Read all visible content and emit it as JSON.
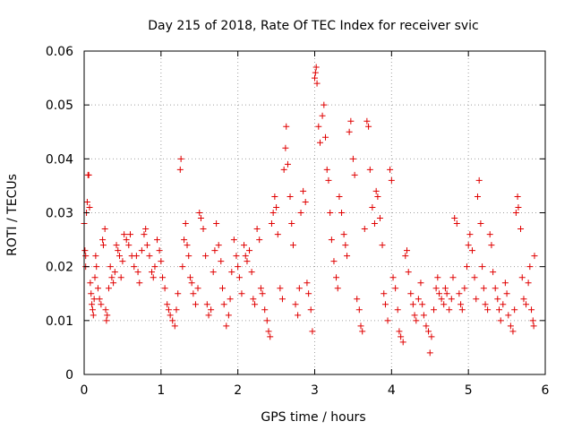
{
  "chart_data": {
    "type": "scatter",
    "title": "Day 215 of 2018, Rate Of TEC Index for receiver svic",
    "xlabel": "GPS time / hours",
    "ylabel": "ROTI / TECUs",
    "xlim": [
      0,
      6
    ],
    "ylim": [
      0,
      0.06
    ],
    "xticks": [
      0,
      1,
      2,
      3,
      4,
      5,
      6
    ],
    "yticks": [
      0,
      0.01,
      0.02,
      0.03,
      0.04,
      0.05,
      0.06
    ],
    "xtick_labels": [
      "0",
      "1",
      "2",
      "3",
      "4",
      "5",
      "6"
    ],
    "ytick_labels": [
      "0",
      "0.01",
      "0.02",
      "0.03",
      "0.04",
      "0.05",
      "0.06"
    ],
    "grid": true,
    "marker": "+",
    "marker_color": "#e00000",
    "series": [
      {
        "name": "ROTI",
        "points": [
          [
            0.0,
            0.028
          ],
          [
            0.01,
            0.023
          ],
          [
            0.02,
            0.022
          ],
          [
            0.02,
            0.02
          ],
          [
            0.03,
            0.03
          ],
          [
            0.04,
            0.032
          ],
          [
            0.05,
            0.037
          ],
          [
            0.06,
            0.037
          ],
          [
            0.07,
            0.031
          ],
          [
            0.08,
            0.017
          ],
          [
            0.09,
            0.015
          ],
          [
            0.1,
            0.013
          ],
          [
            0.11,
            0.012
          ],
          [
            0.12,
            0.011
          ],
          [
            0.13,
            0.014
          ],
          [
            0.14,
            0.018
          ],
          [
            0.15,
            0.022
          ],
          [
            0.16,
            0.02
          ],
          [
            0.18,
            0.016
          ],
          [
            0.2,
            0.014
          ],
          [
            0.22,
            0.013
          ],
          [
            0.24,
            0.025
          ],
          [
            0.25,
            0.024
          ],
          [
            0.27,
            0.027
          ],
          [
            0.28,
            0.012
          ],
          [
            0.29,
            0.01
          ],
          [
            0.3,
            0.011
          ],
          [
            0.32,
            0.016
          ],
          [
            0.34,
            0.02
          ],
          [
            0.36,
            0.018
          ],
          [
            0.38,
            0.017
          ],
          [
            0.4,
            0.019
          ],
          [
            0.42,
            0.024
          ],
          [
            0.44,
            0.023
          ],
          [
            0.46,
            0.022
          ],
          [
            0.48,
            0.018
          ],
          [
            0.5,
            0.021
          ],
          [
            0.52,
            0.026
          ],
          [
            0.55,
            0.025
          ],
          [
            0.58,
            0.024
          ],
          [
            0.6,
            0.026
          ],
          [
            0.62,
            0.022
          ],
          [
            0.65,
            0.02
          ],
          [
            0.68,
            0.022
          ],
          [
            0.7,
            0.019
          ],
          [
            0.72,
            0.017
          ],
          [
            0.75,
            0.023
          ],
          [
            0.78,
            0.026
          ],
          [
            0.8,
            0.027
          ],
          [
            0.82,
            0.024
          ],
          [
            0.85,
            0.022
          ],
          [
            0.88,
            0.019
          ],
          [
            0.9,
            0.018
          ],
          [
            0.92,
            0.02
          ],
          [
            0.95,
            0.025
          ],
          [
            0.98,
            0.023
          ],
          [
            1.0,
            0.021
          ],
          [
            1.02,
            0.018
          ],
          [
            1.05,
            0.016
          ],
          [
            1.08,
            0.013
          ],
          [
            1.1,
            0.012
          ],
          [
            1.12,
            0.011
          ],
          [
            1.15,
            0.01
          ],
          [
            1.18,
            0.009
          ],
          [
            1.2,
            0.012
          ],
          [
            1.22,
            0.015
          ],
          [
            1.25,
            0.038
          ],
          [
            1.26,
            0.04
          ],
          [
            1.28,
            0.02
          ],
          [
            1.3,
            0.025
          ],
          [
            1.32,
            0.028
          ],
          [
            1.34,
            0.024
          ],
          [
            1.36,
            0.022
          ],
          [
            1.38,
            0.018
          ],
          [
            1.4,
            0.017
          ],
          [
            1.42,
            0.015
          ],
          [
            1.45,
            0.013
          ],
          [
            1.48,
            0.016
          ],
          [
            1.5,
            0.03
          ],
          [
            1.52,
            0.029
          ],
          [
            1.55,
            0.027
          ],
          [
            1.58,
            0.022
          ],
          [
            1.6,
            0.013
          ],
          [
            1.62,
            0.011
          ],
          [
            1.65,
            0.012
          ],
          [
            1.68,
            0.019
          ],
          [
            1.7,
            0.023
          ],
          [
            1.72,
            0.028
          ],
          [
            1.75,
            0.024
          ],
          [
            1.78,
            0.021
          ],
          [
            1.8,
            0.016
          ],
          [
            1.82,
            0.013
          ],
          [
            1.85,
            0.009
          ],
          [
            1.88,
            0.011
          ],
          [
            1.9,
            0.014
          ],
          [
            1.92,
            0.019
          ],
          [
            1.95,
            0.025
          ],
          [
            1.98,
            0.022
          ],
          [
            2.0,
            0.02
          ],
          [
            2.02,
            0.018
          ],
          [
            2.05,
            0.015
          ],
          [
            2.08,
            0.024
          ],
          [
            2.1,
            0.022
          ],
          [
            2.12,
            0.021
          ],
          [
            2.15,
            0.023
          ],
          [
            2.18,
            0.019
          ],
          [
            2.2,
            0.014
          ],
          [
            2.22,
            0.013
          ],
          [
            2.25,
            0.027
          ],
          [
            2.28,
            0.025
          ],
          [
            2.3,
            0.016
          ],
          [
            2.32,
            0.015
          ],
          [
            2.35,
            0.012
          ],
          [
            2.38,
            0.01
          ],
          [
            2.4,
            0.008
          ],
          [
            2.42,
            0.007
          ],
          [
            2.44,
            0.028
          ],
          [
            2.46,
            0.03
          ],
          [
            2.48,
            0.033
          ],
          [
            2.5,
            0.031
          ],
          [
            2.52,
            0.026
          ],
          [
            2.55,
            0.016
          ],
          [
            2.58,
            0.014
          ],
          [
            2.6,
            0.038
          ],
          [
            2.62,
            0.042
          ],
          [
            2.63,
            0.046
          ],
          [
            2.65,
            0.039
          ],
          [
            2.68,
            0.033
          ],
          [
            2.7,
            0.028
          ],
          [
            2.72,
            0.024
          ],
          [
            2.75,
            0.013
          ],
          [
            2.78,
            0.011
          ],
          [
            2.8,
            0.016
          ],
          [
            2.82,
            0.03
          ],
          [
            2.85,
            0.034
          ],
          [
            2.88,
            0.032
          ],
          [
            2.9,
            0.017
          ],
          [
            2.92,
            0.015
          ],
          [
            2.95,
            0.012
          ],
          [
            2.97,
            0.008
          ],
          [
            3.0,
            0.055
          ],
          [
            3.01,
            0.056
          ],
          [
            3.02,
            0.057
          ],
          [
            3.03,
            0.054
          ],
          [
            3.05,
            0.046
          ],
          [
            3.07,
            0.043
          ],
          [
            3.1,
            0.048
          ],
          [
            3.12,
            0.05
          ],
          [
            3.14,
            0.044
          ],
          [
            3.16,
            0.038
          ],
          [
            3.18,
            0.036
          ],
          [
            3.2,
            0.03
          ],
          [
            3.22,
            0.025
          ],
          [
            3.25,
            0.021
          ],
          [
            3.28,
            0.018
          ],
          [
            3.3,
            0.016
          ],
          [
            3.32,
            0.033
          ],
          [
            3.35,
            0.03
          ],
          [
            3.38,
            0.026
          ],
          [
            3.4,
            0.024
          ],
          [
            3.42,
            0.022
          ],
          [
            3.45,
            0.045
          ],
          [
            3.47,
            0.047
          ],
          [
            3.5,
            0.04
          ],
          [
            3.52,
            0.037
          ],
          [
            3.55,
            0.014
          ],
          [
            3.58,
            0.012
          ],
          [
            3.6,
            0.009
          ],
          [
            3.62,
            0.008
          ],
          [
            3.65,
            0.027
          ],
          [
            3.68,
            0.047
          ],
          [
            3.7,
            0.046
          ],
          [
            3.72,
            0.038
          ],
          [
            3.75,
            0.031
          ],
          [
            3.78,
            0.028
          ],
          [
            3.8,
            0.034
          ],
          [
            3.82,
            0.033
          ],
          [
            3.85,
            0.029
          ],
          [
            3.88,
            0.024
          ],
          [
            3.9,
            0.015
          ],
          [
            3.92,
            0.013
          ],
          [
            3.95,
            0.01
          ],
          [
            3.98,
            0.038
          ],
          [
            4.0,
            0.036
          ],
          [
            4.02,
            0.018
          ],
          [
            4.05,
            0.016
          ],
          [
            4.08,
            0.012
          ],
          [
            4.1,
            0.008
          ],
          [
            4.12,
            0.007
          ],
          [
            4.15,
            0.006
          ],
          [
            4.18,
            0.022
          ],
          [
            4.2,
            0.023
          ],
          [
            4.22,
            0.019
          ],
          [
            4.25,
            0.015
          ],
          [
            4.28,
            0.013
          ],
          [
            4.3,
            0.011
          ],
          [
            4.32,
            0.01
          ],
          [
            4.35,
            0.014
          ],
          [
            4.38,
            0.017
          ],
          [
            4.4,
            0.013
          ],
          [
            4.42,
            0.011
          ],
          [
            4.45,
            0.009
          ],
          [
            4.48,
            0.008
          ],
          [
            4.5,
            0.004
          ],
          [
            4.52,
            0.007
          ],
          [
            4.55,
            0.012
          ],
          [
            4.58,
            0.016
          ],
          [
            4.6,
            0.018
          ],
          [
            4.62,
            0.015
          ],
          [
            4.65,
            0.014
          ],
          [
            4.68,
            0.013
          ],
          [
            4.7,
            0.016
          ],
          [
            4.72,
            0.015
          ],
          [
            4.75,
            0.012
          ],
          [
            4.78,
            0.014
          ],
          [
            4.8,
            0.018
          ],
          [
            4.82,
            0.029
          ],
          [
            4.85,
            0.028
          ],
          [
            4.88,
            0.015
          ],
          [
            4.9,
            0.013
          ],
          [
            4.92,
            0.012
          ],
          [
            4.95,
            0.016
          ],
          [
            4.98,
            0.02
          ],
          [
            5.0,
            0.024
          ],
          [
            5.02,
            0.026
          ],
          [
            5.05,
            0.023
          ],
          [
            5.08,
            0.018
          ],
          [
            5.1,
            0.014
          ],
          [
            5.12,
            0.033
          ],
          [
            5.14,
            0.036
          ],
          [
            5.16,
            0.028
          ],
          [
            5.18,
            0.02
          ],
          [
            5.2,
            0.016
          ],
          [
            5.22,
            0.013
          ],
          [
            5.25,
            0.012
          ],
          [
            5.28,
            0.026
          ],
          [
            5.3,
            0.024
          ],
          [
            5.32,
            0.019
          ],
          [
            5.35,
            0.016
          ],
          [
            5.38,
            0.014
          ],
          [
            5.4,
            0.012
          ],
          [
            5.42,
            0.01
          ],
          [
            5.45,
            0.013
          ],
          [
            5.48,
            0.017
          ],
          [
            5.5,
            0.015
          ],
          [
            5.52,
            0.011
          ],
          [
            5.55,
            0.009
          ],
          [
            5.58,
            0.008
          ],
          [
            5.6,
            0.012
          ],
          [
            5.62,
            0.03
          ],
          [
            5.64,
            0.033
          ],
          [
            5.65,
            0.031
          ],
          [
            5.68,
            0.027
          ],
          [
            5.7,
            0.018
          ],
          [
            5.72,
            0.014
          ],
          [
            5.75,
            0.013
          ],
          [
            5.78,
            0.017
          ],
          [
            5.8,
            0.02
          ],
          [
            5.82,
            0.012
          ],
          [
            5.84,
            0.01
          ],
          [
            5.85,
            0.009
          ],
          [
            5.86,
            0.022
          ]
        ]
      }
    ]
  }
}
